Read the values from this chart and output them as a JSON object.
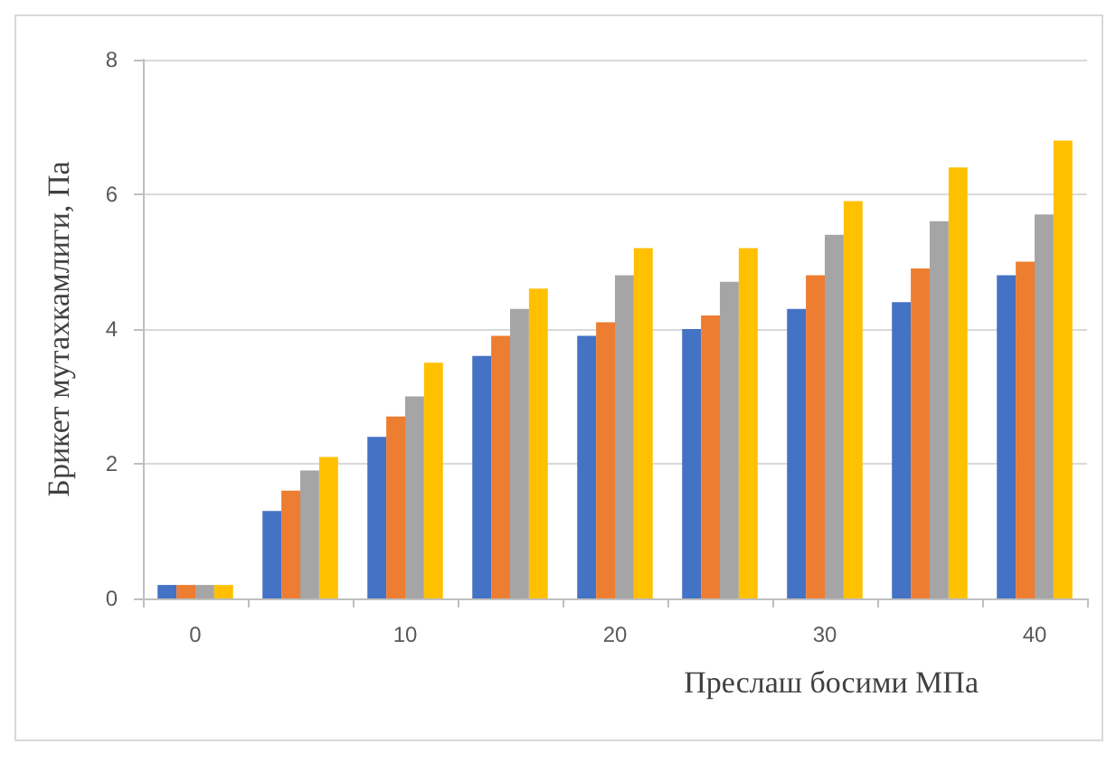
{
  "chart_data": {
    "type": "bar",
    "xlabel": "Преслаш босими МПа",
    "ylabel": "Брикет мутахкамлиги, Па",
    "categories": [
      "0",
      null,
      "10",
      null,
      "20",
      null,
      "30",
      null,
      "40"
    ],
    "series": [
      {
        "color": "#4472c4",
        "values": [
          0.2,
          1.3,
          2.4,
          3.6,
          3.9,
          4.0,
          4.3,
          4.4,
          4.8
        ]
      },
      {
        "color": "#ed7d31",
        "values": [
          0.2,
          1.6,
          2.7,
          3.9,
          4.1,
          4.2,
          4.8,
          4.9,
          5.0
        ]
      },
      {
        "color": "#a5a5a5",
        "values": [
          0.2,
          1.9,
          3.0,
          4.3,
          4.8,
          4.7,
          5.4,
          5.6,
          5.7
        ]
      },
      {
        "color": "#ffc000",
        "values": [
          0.2,
          2.1,
          3.5,
          4.6,
          5.2,
          5.2,
          5.9,
          6.4,
          6.8
        ]
      }
    ],
    "ylim": [
      0,
      8
    ],
    "yticks": [
      0,
      2,
      4,
      6,
      8
    ],
    "grid": "y"
  }
}
